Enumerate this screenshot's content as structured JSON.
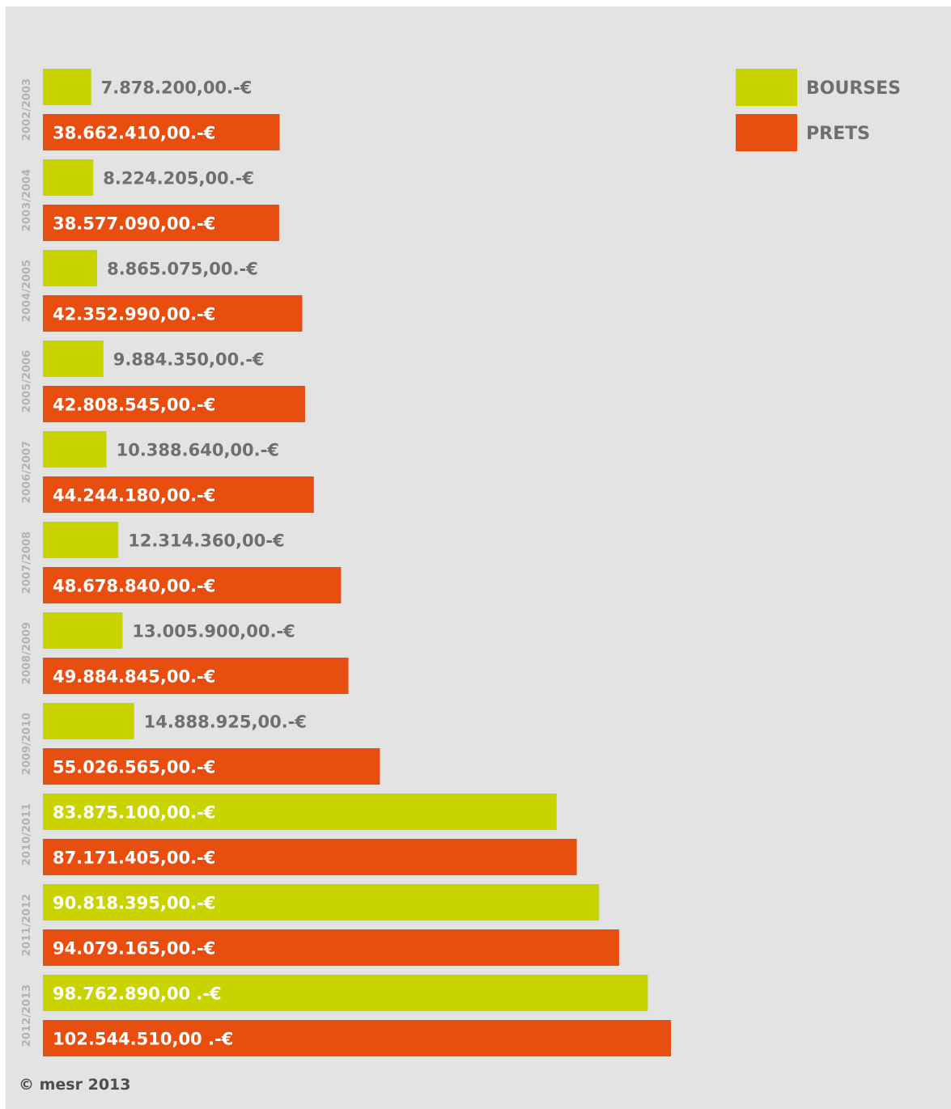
{
  "chart_data": {
    "type": "bar",
    "orientation": "horizontal",
    "categories": [
      "2002/2003",
      "2003/2004",
      "2004/2005",
      "2005/2006",
      "2006/2007",
      "2007/2008",
      "2008/2009",
      "2009/2010",
      "2010/2011",
      "2011/2012",
      "2012/2013"
    ],
    "series": [
      {
        "name": "BOURSES",
        "color": "#c8d400",
        "values": [
          7878200,
          8224205,
          8865075,
          9884350,
          10388640,
          12314360,
          13005900,
          14888925,
          83875100,
          90818395,
          98762890
        ],
        "labels": [
          "7.878.200,00.-€",
          "8.224.205,00.-€",
          "8.865.075,00.-€",
          "9.884.350,00.-€",
          "10.388.640,00.-€",
          "12.314.360,00-€",
          "13.005.900,00.-€",
          "14.888.925,00.-€",
          "83.875.100,00.-€",
          "90.818.395,00.-€",
          "98.762.890,00 .-€"
        ]
      },
      {
        "name": "PRETS",
        "color": "#e84e0f",
        "values": [
          38662410,
          38577090,
          42352990,
          42808545,
          44244180,
          48678840,
          49884845,
          55026565,
          87171405,
          94079165,
          102544510
        ],
        "labels": [
          "38.662.410,00.-€",
          "38.577.090,00.-€",
          "42.352.990,00.-€",
          "42.808.545,00.-€",
          "44.244.180,00.-€",
          "48.678.840,00.-€",
          "49.884.845,00.-€",
          "55.026.565,00.-€",
          "87.171.405,00.-€",
          "94.079.165,00.-€",
          "102.544.510,00 .-€"
        ]
      }
    ],
    "xlim": [
      0,
      102544510
    ],
    "grid": false,
    "legend_position": "top-right",
    "background": "#e3e3e3"
  },
  "footer": {
    "copyright": "© mesr 2013"
  }
}
